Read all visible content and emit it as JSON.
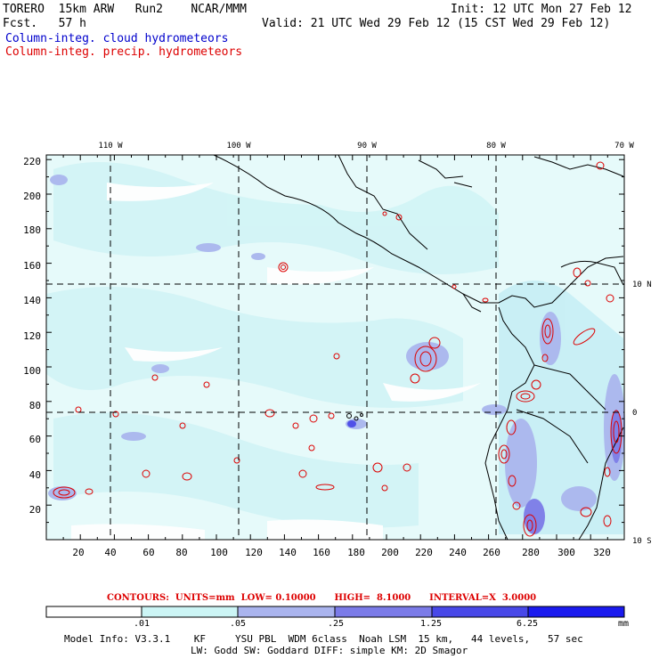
{
  "header": {
    "model": "TORERO  15km ARW   Run2    NCAR/MMM",
    "forecast": "Fcst.   57 h",
    "init": "Init: 12 UTC Mon 27 Feb 12",
    "valid": "Valid: 21 UTC Wed 29 Feb 12 (15 CST Wed 29 Feb 12)",
    "line_cloud": "Column-integ. cloud hydrometeors",
    "line_precip": "Column-integ. precip. hydrometeors"
  },
  "map": {
    "lon_labels": [
      "110 W",
      "100 W",
      "90 W",
      "80 W",
      "70 W"
    ],
    "lat_labels": [
      "10 N",
      "0",
      "10 S"
    ],
    "x_ticks": [
      "20",
      "40",
      "60",
      "80",
      "100",
      "120",
      "140",
      "160",
      "180",
      "200",
      "220",
      "240",
      "260",
      "280",
      "300",
      "320"
    ],
    "y_ticks": [
      "220",
      "200",
      "180",
      "160",
      "140",
      "120",
      "100",
      "80",
      "60",
      "40",
      "20"
    ]
  },
  "contours_line": "CONTOURS:  UNITS=mm  LOW= 0.10000      HIGH=  8.1000      INTERVAL=X  3.0000",
  "colorbar": {
    "labels": [
      ".01",
      ".05",
      ".25",
      "1.25",
      "6.25"
    ],
    "unit": "mm",
    "colors": [
      "#ffffff",
      "#ccf5f5",
      "#aab4ee",
      "#7b7be8",
      "#4848e8",
      "#1a1aee"
    ]
  },
  "footer": {
    "line1": "Model Info: V3.3.1    KF     YSU PBL  WDM 6class  Noah LSM  15 km,   44 levels,   57 sec",
    "line2": "LW: Godd SW: Goddard DIFF: simple KM: 2D Smagor"
  }
}
